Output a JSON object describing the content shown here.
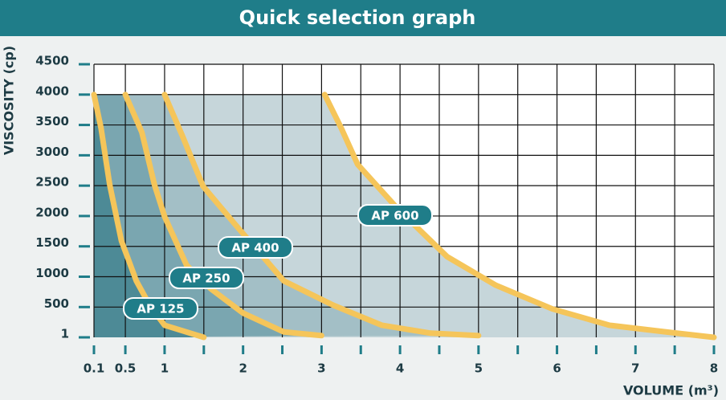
{
  "chart_data": {
    "type": "line",
    "title": "Quick selection graph",
    "x_label": "VOLUME (m³)",
    "y_label": "VISCOSITY (cp)",
    "xlim": [
      0.1,
      8
    ],
    "xticks": [
      0.1,
      0.5,
      1,
      2,
      3,
      4,
      5,
      6,
      7,
      8
    ],
    "xminor": [
      1.5,
      2.5,
      3.5,
      4.5,
      5.5,
      6.5,
      7.5
    ],
    "ylim": [
      1,
      4500
    ],
    "yticks": [
      1,
      500,
      1000,
      1500,
      2000,
      2500,
      3000,
      3500,
      4000,
      4500
    ],
    "grid": true,
    "series": [
      {
        "name": "AP 125",
        "color": "#f5c55a",
        "fill": "#4d8a96",
        "x": [
          0.1,
          0.19,
          0.3,
          0.45,
          0.64,
          0.81,
          1,
          1.5
        ],
        "values": [
          4000,
          3450,
          2520,
          1590,
          930,
          530,
          200,
          1
        ]
      },
      {
        "name": "AP 250",
        "color": "#f5c55a",
        "fill": "#7aa6b0",
        "x": [
          0.5,
          0.71,
          0.87,
          1,
          1.28,
          1.59,
          2.0,
          2.52,
          3.0
        ],
        "values": [
          4000,
          3380,
          2520,
          1990,
          1190,
          800,
          400,
          90,
          30
        ]
      },
      {
        "name": "AP 400",
        "color": "#f5c55a",
        "fill": "#a3bfc6",
        "x": [
          1,
          1.23,
          1.49,
          1.9,
          2.52,
          3.15,
          3.77,
          4.39,
          5
        ],
        "values": [
          4000,
          3310,
          2490,
          1860,
          930,
          530,
          200,
          70,
          30
        ]
      },
      {
        "name": "AP 600",
        "color": "#f5c55a",
        "fill": "#c6d6da",
        "x": [
          3.04,
          3.25,
          3.46,
          3.97,
          4.6,
          5.22,
          5.94,
          6.67,
          7.39,
          8
        ],
        "values": [
          4000,
          3450,
          2850,
          2120,
          1330,
          860,
          470,
          200,
          90,
          1
        ]
      }
    ]
  }
}
